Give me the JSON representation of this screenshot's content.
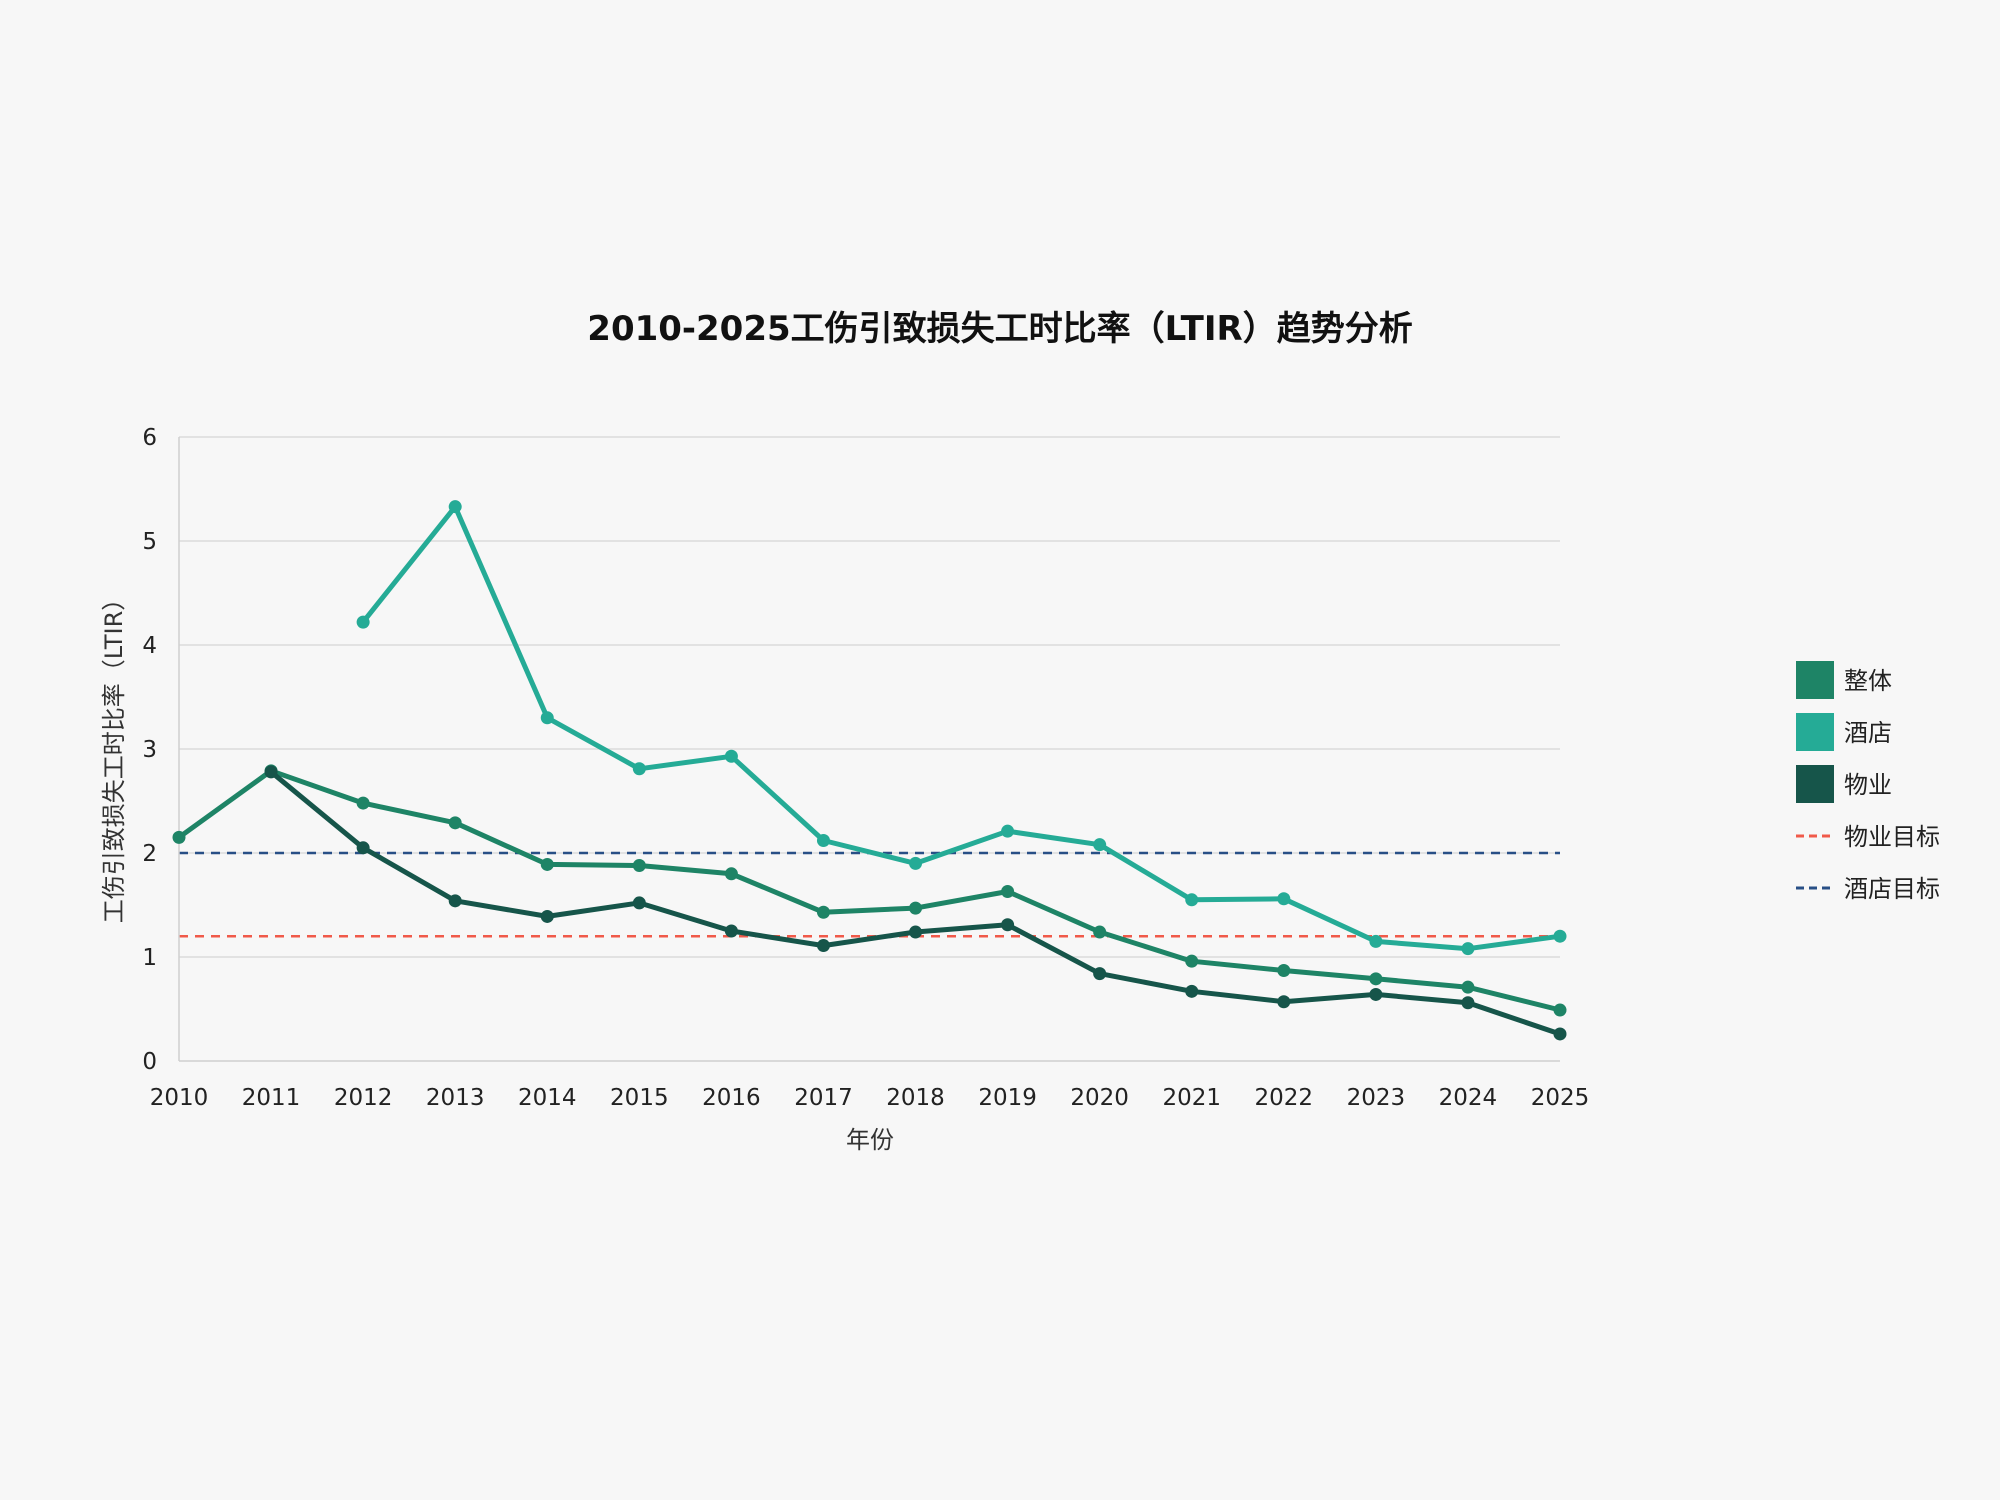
{
  "chart_data": {
    "type": "line",
    "title": "2010-2025工伤引致损失工时比率（LTIR）趋势分析",
    "xlabel": "年份",
    "ylabel": "工伤引致损失工时比率（LTIR）",
    "x": [
      2010,
      2011,
      2012,
      2013,
      2014,
      2015,
      2016,
      2017,
      2018,
      2019,
      2020,
      2021,
      2022,
      2023,
      2024,
      2025
    ],
    "ylim": [
      0,
      6
    ],
    "yticks": [
      0,
      1,
      2,
      3,
      4,
      5,
      6
    ],
    "grid": true,
    "legend_position": "right",
    "series": [
      {
        "name": "整体",
        "color": "#1e8466",
        "values": [
          2.15,
          2.79,
          2.48,
          2.29,
          1.89,
          1.88,
          1.8,
          1.43,
          1.47,
          1.63,
          1.24,
          0.96,
          0.87,
          0.79,
          0.71,
          0.49
        ]
      },
      {
        "name": "酒店",
        "color": "#25ab96",
        "values": [
          null,
          null,
          4.22,
          5.33,
          3.3,
          2.81,
          2.93,
          2.12,
          1.9,
          2.21,
          2.08,
          1.55,
          1.56,
          1.15,
          1.08,
          1.2
        ]
      },
      {
        "name": "物业",
        "color": "#16554a",
        "values": [
          null,
          2.78,
          2.05,
          1.54,
          1.39,
          1.52,
          1.25,
          1.11,
          1.24,
          1.31,
          0.84,
          0.67,
          0.57,
          0.64,
          0.56,
          0.26
        ]
      }
    ],
    "reference_lines": [
      {
        "name": "物业目标",
        "value": 1.2,
        "color": "#f05a4a",
        "style": "dashed"
      },
      {
        "name": "酒店目标",
        "value": 2.0,
        "color": "#284f86",
        "style": "dashed"
      }
    ]
  }
}
